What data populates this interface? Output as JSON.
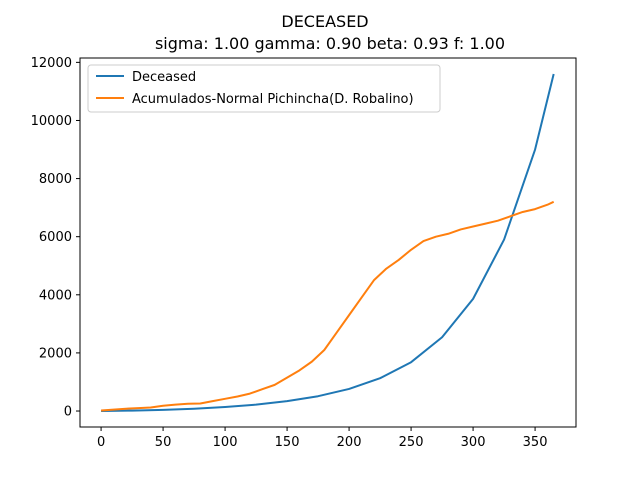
{
  "chart_data": {
    "type": "line",
    "title": "DECEASED",
    "subtitle": "sigma: 1.00 gamma: 0.90 beta: 0.93 f: 1.00",
    "xlabel": "",
    "ylabel": "",
    "xlim": [
      -17,
      383
    ],
    "ylim": [
      -550,
      12150
    ],
    "x_ticks": [
      0,
      50,
      100,
      150,
      200,
      250,
      300,
      350
    ],
    "y_ticks": [
      0,
      2000,
      4000,
      6000,
      8000,
      10000,
      12000
    ],
    "grid": false,
    "legend_position": "top-left",
    "series": [
      {
        "name": "Deceased",
        "color": "#1f77b4",
        "x": [
          0,
          25,
          50,
          75,
          100,
          125,
          150,
          175,
          200,
          225,
          250,
          275,
          300,
          325,
          350,
          365
        ],
        "y": [
          0,
          15,
          40,
          80,
          140,
          220,
          340,
          510,
          760,
          1130,
          1680,
          2540,
          3860,
          5900,
          9000,
          11600
        ]
      },
      {
        "name": "Acumulados-Normal Pichincha(D. Robalino)",
        "color": "#ff7f0e",
        "x": [
          0,
          10,
          20,
          30,
          40,
          50,
          60,
          70,
          80,
          90,
          100,
          110,
          120,
          130,
          140,
          150,
          160,
          170,
          180,
          190,
          200,
          210,
          220,
          230,
          240,
          250,
          260,
          270,
          280,
          290,
          300,
          310,
          320,
          330,
          340,
          350,
          360,
          365
        ],
        "y": [
          20,
          50,
          80,
          100,
          120,
          180,
          220,
          250,
          260,
          340,
          420,
          500,
          600,
          750,
          900,
          1150,
          1400,
          1700,
          2100,
          2700,
          3300,
          3900,
          4500,
          4900,
          5200,
          5550,
          5850,
          6000,
          6100,
          6250,
          6350,
          6450,
          6550,
          6700,
          6850,
          6950,
          7100,
          7200
        ]
      }
    ]
  }
}
